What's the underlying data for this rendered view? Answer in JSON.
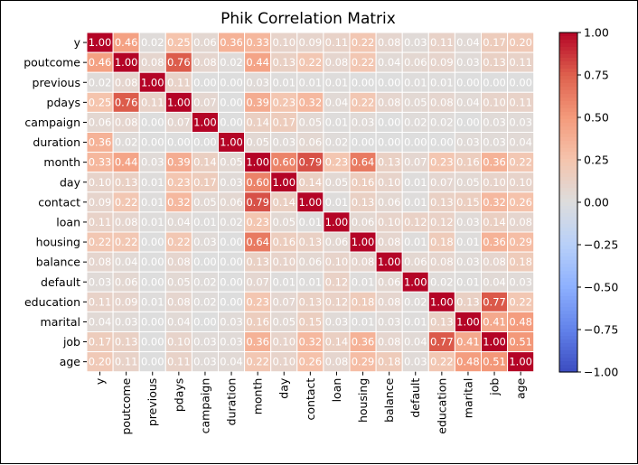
{
  "chart_data": {
    "type": "heatmap",
    "title": "Phik Correlation Matrix",
    "rows": [
      "y",
      "poutcome",
      "previous",
      "pdays",
      "campaign",
      "duration",
      "month",
      "day",
      "contact",
      "loan",
      "housing",
      "balance",
      "default",
      "education",
      "marital",
      "job",
      "age"
    ],
    "columns": [
      "y",
      "poutcome",
      "previous",
      "pdays",
      "campaign",
      "duration",
      "month",
      "day",
      "contact",
      "loan",
      "housing",
      "balance",
      "default",
      "education",
      "marital",
      "job",
      "age"
    ],
    "value_labels": [
      [
        "1.00",
        "0.46",
        "0.02",
        "0.25",
        "0.06",
        "0.36",
        "0.33",
        "0.10",
        "0.09",
        "0.11",
        "0.22",
        "0.08",
        "0.03",
        "0.11",
        "0.04",
        "0.17",
        "0.20"
      ],
      [
        "0.46",
        "1.00",
        "0.08",
        "0.76",
        "0.08",
        "0.02",
        "0.44",
        "0.13",
        "0.22",
        "0.08",
        "0.22",
        "0.04",
        "0.06",
        "0.09",
        "0.03",
        "0.13",
        "0.11"
      ],
      [
        "0.02",
        "0.08",
        "1.00",
        "0.11",
        "0.00",
        "0.00",
        "0.03",
        "0.01",
        "0.01",
        "0.01",
        "0.00",
        "0.00",
        "0.01",
        "0.01",
        "0.00",
        "0.00",
        "0.00"
      ],
      [
        "0.25",
        "0.76",
        "0.11",
        "1.00",
        "0.07",
        "0.00",
        "0.39",
        "0.23",
        "0.32",
        "0.04",
        "0.22",
        "0.08",
        "0.05",
        "0.08",
        "0.04",
        "0.10",
        "0.11"
      ],
      [
        "0.06",
        "0.08",
        "0.00",
        "0.07",
        "1.00",
        "0.00",
        "0.14",
        "0.17",
        "0.05",
        "0.01",
        "0.03",
        "0.00",
        "0.02",
        "0.02",
        "0.00",
        "0.03",
        "0.03"
      ],
      [
        "0.36",
        "0.02",
        "0.00",
        "0.00",
        "0.00",
        "1.00",
        "0.05",
        "0.03",
        "0.06",
        "0.02",
        "0.00",
        "0.00",
        "0.00",
        "0.00",
        "0.03",
        "0.03",
        "0.04"
      ],
      [
        "0.33",
        "0.44",
        "0.03",
        "0.39",
        "0.14",
        "0.05",
        "1.00",
        "0.60",
        "0.79",
        "0.23",
        "0.64",
        "0.13",
        "0.07",
        "0.23",
        "0.16",
        "0.36",
        "0.22"
      ],
      [
        "0.10",
        "0.13",
        "0.01",
        "0.23",
        "0.17",
        "0.03",
        "0.60",
        "1.00",
        "0.14",
        "0.05",
        "0.16",
        "0.10",
        "0.01",
        "0.07",
        "0.05",
        "0.10",
        "0.10"
      ],
      [
        "0.09",
        "0.22",
        "0.01",
        "0.32",
        "0.05",
        "0.06",
        "0.79",
        "0.14",
        "1.00",
        "0.01",
        "0.13",
        "0.06",
        "0.01",
        "0.13",
        "0.15",
        "0.32",
        "0.26"
      ],
      [
        "0.11",
        "0.08",
        "0.01",
        "0.04",
        "0.01",
        "0.02",
        "0.23",
        "0.05",
        "0.01",
        "1.00",
        "0.06",
        "0.10",
        "0.12",
        "0.12",
        "0.03",
        "0.14",
        "0.08"
      ],
      [
        "0.22",
        "0.22",
        "0.00",
        "0.22",
        "0.03",
        "0.00",
        "0.64",
        "0.16",
        "0.13",
        "0.06",
        "1.00",
        "0.08",
        "0.01",
        "0.18",
        "0.01",
        "0.36",
        "0.29"
      ],
      [
        "0.08",
        "0.04",
        "0.00",
        "0.08",
        "0.00",
        "0.00",
        "0.13",
        "0.10",
        "0.06",
        "0.10",
        "0.08",
        "1.00",
        "0.06",
        "0.08",
        "0.03",
        "0.08",
        "0.18"
      ],
      [
        "0.03",
        "0.06",
        "0.00",
        "0.05",
        "0.02",
        "0.00",
        "0.07",
        "0.01",
        "0.01",
        "0.12",
        "0.01",
        "0.06",
        "1.00",
        "0.02",
        "0.01",
        "0.04",
        "0.03"
      ],
      [
        "0.11",
        "0.09",
        "0.01",
        "0.08",
        "0.02",
        "0.00",
        "0.23",
        "0.07",
        "0.13",
        "0.12",
        "0.18",
        "0.08",
        "0.02",
        "1.00",
        "0.13",
        "0.77",
        "0.22"
      ],
      [
        "0.04",
        "0.03",
        "0.00",
        "0.04",
        "0.00",
        "0.03",
        "0.16",
        "0.05",
        "0.15",
        "0.03",
        "0.01",
        "0.03",
        "0.01",
        "0.13",
        "1.00",
        "0.41",
        "0.48"
      ],
      [
        "0.17",
        "0.13",
        "0.00",
        "0.10",
        "0.03",
        "0.03",
        "0.36",
        "0.10",
        "0.32",
        "0.14",
        "0.36",
        "0.08",
        "0.04",
        "0.77",
        "0.41",
        "1.00",
        "0.51"
      ],
      [
        "0.20",
        "0.11",
        "0.00",
        "0.11",
        "0.03",
        "0.04",
        "0.22",
        "0.10",
        "0.26",
        "0.08",
        "0.29",
        "0.18",
        "0.03",
        "0.22",
        "0.48",
        "0.51",
        "1.00"
      ]
    ],
    "colormap": "coolwarm",
    "vmin": -1.0,
    "vmax": 1.0,
    "colorbar_ticks": [
      "1.00",
      "0.75",
      "0.50",
      "0.25",
      "0.00",
      "−0.25",
      "−0.50",
      "−0.75",
      "−1.00"
    ],
    "grid": true,
    "cell_border_color": "#ffffff"
  }
}
